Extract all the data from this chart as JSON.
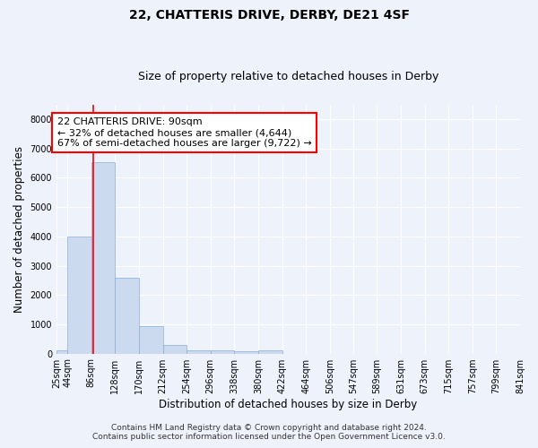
{
  "title": "22, CHATTERIS DRIVE, DERBY, DE21 4SF",
  "subtitle": "Size of property relative to detached houses in Derby",
  "xlabel": "Distribution of detached houses by size in Derby",
  "ylabel": "Number of detached properties",
  "bin_edges": [
    25,
    44,
    86,
    128,
    170,
    212,
    254,
    296,
    338,
    380,
    422,
    464,
    506,
    547,
    589,
    631,
    673,
    715,
    757,
    799,
    841
  ],
  "bar_heights": [
    100,
    4000,
    6550,
    2600,
    950,
    300,
    120,
    100,
    80,
    100,
    0,
    0,
    0,
    0,
    0,
    0,
    0,
    0,
    0,
    0
  ],
  "bar_color": "#ccdaf0",
  "bar_edge_color": "#8aadd4",
  "red_line_x": 90,
  "annotation_text_line1": "22 CHATTERIS DRIVE: 90sqm",
  "annotation_text_line2": "← 32% of detached houses are smaller (4,644)",
  "annotation_text_line3": "67% of semi-detached houses are larger (9,722) →",
  "ylim": [
    0,
    8500
  ],
  "yticks": [
    0,
    1000,
    2000,
    3000,
    4000,
    5000,
    6000,
    7000,
    8000
  ],
  "footer_line1": "Contains HM Land Registry data © Crown copyright and database right 2024.",
  "footer_line2": "Contains public sector information licensed under the Open Government Licence v3.0.",
  "bg_color": "#edf2fb",
  "plot_bg_color": "#edf2fb",
  "grid_color": "#ffffff",
  "title_fontsize": 10,
  "subtitle_fontsize": 9,
  "axis_label_fontsize": 8.5,
  "tick_fontsize": 7,
  "annotation_fontsize": 8,
  "footer_fontsize": 6.5
}
